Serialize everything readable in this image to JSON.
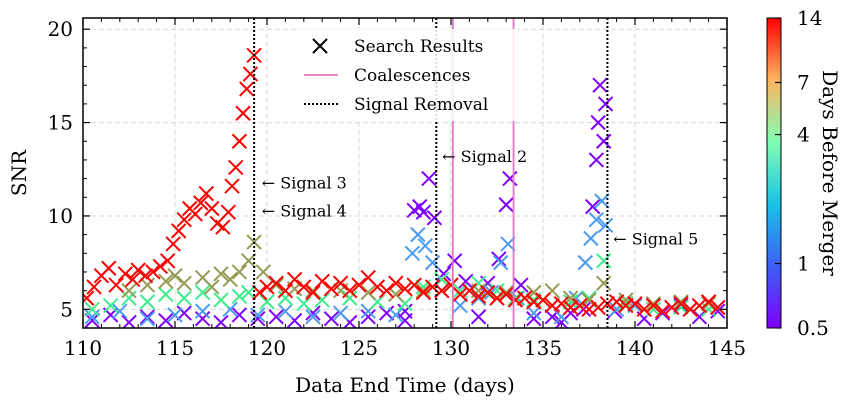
{
  "chart_data": {
    "type": "scatter",
    "xlabel": "Data End Time (days)",
    "ylabel": "SNR",
    "xlim": [
      110,
      145
    ],
    "ylim": [
      4,
      20.6
    ],
    "xticks": [
      110,
      115,
      120,
      125,
      130,
      135,
      140,
      145
    ],
    "yticks": [
      5,
      10,
      15,
      20
    ],
    "grid": true,
    "legend": {
      "position": "top-center",
      "entries": [
        {
          "label": "Search Results",
          "marker": "x",
          "color": "#000000"
        },
        {
          "label": "Coalescences",
          "style": "solid",
          "color": "#e377c2"
        },
        {
          "label": "Signal Removal",
          "style": "dotted",
          "color": "#000000"
        }
      ]
    },
    "colorbar": {
      "label": "Days Before Merger",
      "scale": "log",
      "range": [
        0.5,
        14
      ],
      "ticks": [
        0.5,
        1,
        4,
        7,
        14
      ],
      "colormap": "rainbow"
    },
    "coalescences": [
      130.1,
      133.4
    ],
    "signal_removals": [
      119.3,
      129.2,
      138.5
    ],
    "annotations": [
      {
        "text": "← Signal 3",
        "x": 119.5,
        "y": 11.8
      },
      {
        "text": "← Signal 4",
        "x": 119.5,
        "y": 10.3
      },
      {
        "text": "← Signal 2",
        "x": 129.3,
        "y": 13.2
      },
      {
        "text": "← Signal 5",
        "x": 138.6,
        "y": 8.8
      }
    ],
    "series": [
      {
        "days_before_merger": 0.5,
        "points": [
          [
            110.5,
            4.4
          ],
          [
            111.5,
            4.7
          ],
          [
            112.5,
            4.3
          ],
          [
            113.5,
            4.6
          ],
          [
            114.5,
            4.4
          ],
          [
            115.5,
            4.8
          ],
          [
            116.5,
            4.5
          ],
          [
            117.5,
            4.3
          ],
          [
            118.5,
            4.7
          ],
          [
            119.5,
            4.5
          ],
          [
            120.5,
            4.6
          ],
          [
            121.5,
            4.4
          ],
          [
            122.5,
            4.8
          ],
          [
            123.5,
            4.5
          ],
          [
            124.5,
            4.3
          ],
          [
            125.5,
            4.6
          ],
          [
            126.5,
            4.8
          ],
          [
            127.5,
            4.9
          ],
          [
            128.0,
            10.3
          ],
          [
            128.3,
            10.5
          ],
          [
            128.5,
            10.2
          ],
          [
            128.8,
            12.0
          ],
          [
            129.1,
            9.9
          ],
          [
            129.6,
            6.9
          ],
          [
            130.2,
            7.6
          ],
          [
            130.8,
            6.5
          ],
          [
            131.5,
            4.6
          ],
          [
            132.0,
            6.4
          ],
          [
            132.6,
            7.7
          ],
          [
            133.0,
            10.6
          ],
          [
            133.2,
            12.0
          ],
          [
            133.8,
            6.3
          ],
          [
            134.5,
            4.5
          ],
          [
            135.5,
            4.6
          ],
          [
            136.5,
            4.8
          ],
          [
            137.2,
            5.0
          ],
          [
            137.7,
            10.5
          ],
          [
            137.9,
            13.0
          ],
          [
            138.0,
            15.0
          ],
          [
            138.1,
            17.0
          ],
          [
            138.3,
            14.0
          ],
          [
            138.4,
            16.0
          ],
          [
            138.9,
            4.9
          ],
          [
            139.5,
            5.3
          ],
          [
            140.5,
            4.5
          ],
          [
            141.5,
            4.8
          ],
          [
            142.5,
            5.2
          ],
          [
            143.5,
            4.6
          ],
          [
            144.5,
            4.9
          ],
          [
            127.5,
            4.4
          ],
          [
            136.0,
            4.3
          ]
        ]
      },
      {
        "days_before_merger": 1,
        "points": [
          [
            110.5,
            4.6
          ],
          [
            112.0,
            4.9
          ],
          [
            113.5,
            4.5
          ],
          [
            115.0,
            4.7
          ],
          [
            116.5,
            4.9
          ],
          [
            118.0,
            5.0
          ],
          [
            119.5,
            4.7
          ],
          [
            121.0,
            4.9
          ],
          [
            122.5,
            4.6
          ],
          [
            124.0,
            4.8
          ],
          [
            125.5,
            4.9
          ],
          [
            127.0,
            4.7
          ],
          [
            127.9,
            8.0
          ],
          [
            128.2,
            9.0
          ],
          [
            128.6,
            8.4
          ],
          [
            129.0,
            7.5
          ],
          [
            129.5,
            6.0
          ],
          [
            130.5,
            5.2
          ],
          [
            131.5,
            5.6
          ],
          [
            132.2,
            5.9
          ],
          [
            132.7,
            7.5
          ],
          [
            133.1,
            8.5
          ],
          [
            133.6,
            5.6
          ],
          [
            134.5,
            4.8
          ],
          [
            136.0,
            4.6
          ],
          [
            136.8,
            5.6
          ],
          [
            137.3,
            7.5
          ],
          [
            137.6,
            8.8
          ],
          [
            137.9,
            9.8
          ],
          [
            138.2,
            10.8
          ],
          [
            138.4,
            9.5
          ],
          [
            139.0,
            5.0
          ],
          [
            140.0,
            5.2
          ],
          [
            141.5,
            4.9
          ],
          [
            143.0,
            5.0
          ],
          [
            144.5,
            5.1
          ]
        ]
      },
      {
        "days_before_merger": 4,
        "points": [
          [
            110.5,
            5.0
          ],
          [
            111.5,
            5.2
          ],
          [
            112.5,
            5.6
          ],
          [
            113.5,
            5.4
          ],
          [
            114.5,
            5.8
          ],
          [
            115.5,
            5.6
          ],
          [
            116.5,
            5.9
          ],
          [
            117.5,
            5.5
          ],
          [
            118.5,
            5.7
          ],
          [
            119.0,
            5.9
          ],
          [
            120.0,
            5.4
          ],
          [
            121.0,
            5.6
          ],
          [
            122.0,
            5.3
          ],
          [
            123.0,
            5.5
          ],
          [
            124.5,
            5.6
          ],
          [
            126.0,
            5.4
          ],
          [
            127.5,
            5.3
          ],
          [
            128.5,
            6.2
          ],
          [
            129.5,
            6.6
          ],
          [
            130.5,
            6.0
          ],
          [
            131.5,
            6.4
          ],
          [
            132.5,
            6.0
          ],
          [
            133.5,
            5.6
          ],
          [
            134.5,
            5.5
          ],
          [
            135.5,
            5.2
          ],
          [
            136.5,
            5.4
          ],
          [
            137.5,
            5.6
          ],
          [
            138.3,
            7.6
          ],
          [
            139.5,
            5.3
          ],
          [
            141.0,
            5.0
          ],
          [
            142.5,
            5.1
          ],
          [
            144.0,
            5.0
          ]
        ]
      },
      {
        "days_before_merger": 7,
        "points": [
          [
            112.5,
            6.0
          ],
          [
            113.5,
            6.3
          ],
          [
            114.5,
            6.5
          ],
          [
            115.0,
            6.8
          ],
          [
            115.5,
            6.4
          ],
          [
            116.5,
            6.7
          ],
          [
            117.0,
            6.2
          ],
          [
            117.5,
            6.9
          ],
          [
            118.0,
            6.6
          ],
          [
            118.5,
            7.0
          ],
          [
            119.0,
            7.6
          ],
          [
            119.3,
            8.6
          ],
          [
            119.8,
            7.0
          ],
          [
            120.5,
            6.3
          ],
          [
            121.5,
            6.1
          ],
          [
            122.5,
            6.0
          ],
          [
            124.0,
            6.0
          ],
          [
            125.5,
            5.9
          ],
          [
            127.0,
            5.8
          ],
          [
            128.5,
            6.0
          ],
          [
            130.0,
            6.3
          ],
          [
            131.5,
            6.0
          ],
          [
            133.0,
            5.9
          ],
          [
            134.5,
            5.9
          ],
          [
            135.5,
            6.0
          ],
          [
            136.5,
            5.6
          ],
          [
            137.5,
            5.5
          ],
          [
            138.3,
            6.4
          ],
          [
            139.5,
            5.5
          ],
          [
            141.0,
            5.3
          ],
          [
            142.5,
            5.4
          ],
          [
            144.0,
            5.3
          ]
        ]
      },
      {
        "days_before_merger": 14,
        "points": [
          [
            110.2,
            5.6
          ],
          [
            110.6,
            6.2
          ],
          [
            111.0,
            6.8
          ],
          [
            111.4,
            7.2
          ],
          [
            111.8,
            6.3
          ],
          [
            112.3,
            6.9
          ],
          [
            112.7,
            6.6
          ],
          [
            113.0,
            7.1
          ],
          [
            113.4,
            6.8
          ],
          [
            113.8,
            7.0
          ],
          [
            114.2,
            7.3
          ],
          [
            114.6,
            7.6
          ],
          [
            114.9,
            8.5
          ],
          [
            115.2,
            9.2
          ],
          [
            115.5,
            9.8
          ],
          [
            115.8,
            10.4
          ],
          [
            116.1,
            10.1
          ],
          [
            116.4,
            10.7
          ],
          [
            116.7,
            11.2
          ],
          [
            117.0,
            10.4
          ],
          [
            117.3,
            9.6
          ],
          [
            117.6,
            9.4
          ],
          [
            117.9,
            10.2
          ],
          [
            118.1,
            11.6
          ],
          [
            118.3,
            12.6
          ],
          [
            118.5,
            14.0
          ],
          [
            118.7,
            15.5
          ],
          [
            118.9,
            16.8
          ],
          [
            119.1,
            17.6
          ],
          [
            119.3,
            18.6
          ],
          [
            119.6,
            5.9
          ],
          [
            120.0,
            6.2
          ],
          [
            120.5,
            6.4
          ],
          [
            121.0,
            6.0
          ],
          [
            121.5,
            6.6
          ],
          [
            122.0,
            6.2
          ],
          [
            122.5,
            5.9
          ],
          [
            123.0,
            6.5
          ],
          [
            123.5,
            6.1
          ],
          [
            124.0,
            6.4
          ],
          [
            124.5,
            6.0
          ],
          [
            125.0,
            6.3
          ],
          [
            125.5,
            6.7
          ],
          [
            126.0,
            6.2
          ],
          [
            126.5,
            6.0
          ],
          [
            127.0,
            6.4
          ],
          [
            127.5,
            6.1
          ],
          [
            128.0,
            6.3
          ],
          [
            128.5,
            5.9
          ],
          [
            129.0,
            6.2
          ],
          [
            129.5,
            6.0
          ],
          [
            130.0,
            6.3
          ],
          [
            130.5,
            5.8
          ],
          [
            131.0,
            6.0
          ],
          [
            131.5,
            5.7
          ],
          [
            132.0,
            5.9
          ],
          [
            132.5,
            5.6
          ],
          [
            133.0,
            5.8
          ],
          [
            133.5,
            5.5
          ],
          [
            134.0,
            5.6
          ],
          [
            134.5,
            5.4
          ],
          [
            135.0,
            5.5
          ],
          [
            135.5,
            5.2
          ],
          [
            136.0,
            5.3
          ],
          [
            136.5,
            5.1
          ],
          [
            137.0,
            5.2
          ],
          [
            137.5,
            5.0
          ],
          [
            138.0,
            5.1
          ],
          [
            138.5,
            5.3
          ],
          [
            139.0,
            5.4
          ],
          [
            139.5,
            5.2
          ],
          [
            140.0,
            5.3
          ],
          [
            140.5,
            5.0
          ],
          [
            141.0,
            5.2
          ],
          [
            141.5,
            4.9
          ],
          [
            142.0,
            5.1
          ],
          [
            142.5,
            5.3
          ],
          [
            143.0,
            5.0
          ],
          [
            143.5,
            5.2
          ],
          [
            144.0,
            5.4
          ],
          [
            144.5,
            5.1
          ]
        ]
      }
    ]
  }
}
